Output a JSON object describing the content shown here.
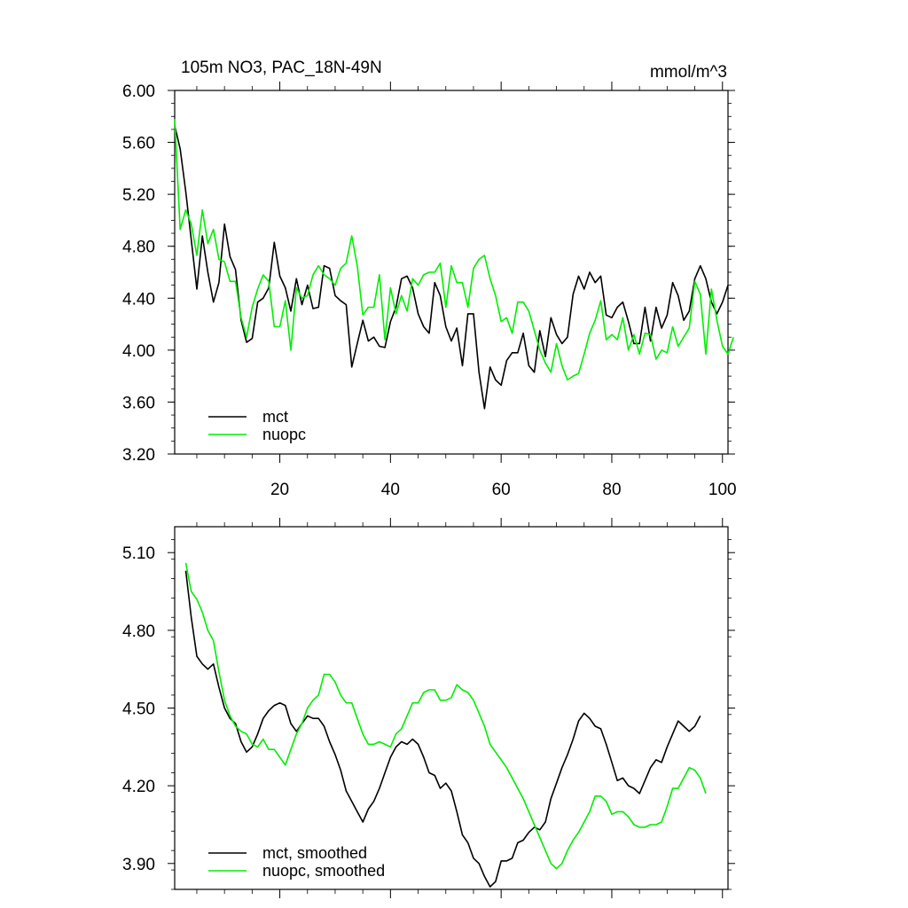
{
  "chart_data": [
    {
      "type": "line",
      "title_left": "105m NO3, PAC_18N-49N",
      "title_right": "mmol/m^3",
      "xlabel": "",
      "ylabel": "",
      "xlim": [
        1,
        101
      ],
      "ylim": [
        3.2,
        6.0
      ],
      "yticks": [
        "6.00",
        "5.60",
        "5.20",
        "4.80",
        "4.40",
        "4.00",
        "3.60",
        "3.20"
      ],
      "ytick_values": [
        6.0,
        5.6,
        5.2,
        4.8,
        4.4,
        4.0,
        3.6,
        3.2
      ],
      "xticks": [
        "20",
        "40",
        "60",
        "80",
        "100"
      ],
      "xtick_values": [
        20,
        40,
        60,
        80,
        100
      ],
      "legend": "bottom-left",
      "series": [
        {
          "name": "mct",
          "color": "#000000",
          "x_start": 1,
          "values": [
            5.73,
            5.55,
            5.22,
            4.85,
            4.47,
            4.88,
            4.6,
            4.37,
            4.52,
            4.97,
            4.72,
            4.62,
            4.23,
            4.06,
            4.09,
            4.37,
            4.4,
            4.48,
            4.83,
            4.57,
            4.48,
            4.3,
            4.55,
            4.35,
            4.5,
            4.32,
            4.33,
            4.65,
            4.63,
            4.42,
            4.38,
            4.35,
            3.87,
            4.05,
            4.23,
            4.07,
            4.1,
            4.03,
            4.02,
            4.22,
            4.33,
            4.55,
            4.57,
            4.48,
            4.28,
            4.18,
            4.13,
            4.52,
            4.42,
            4.18,
            4.07,
            4.17,
            3.88,
            4.28,
            4.28,
            3.83,
            3.55,
            3.87,
            3.77,
            3.73,
            3.92,
            3.98,
            3.98,
            4.13,
            3.88,
            3.83,
            4.15,
            3.95,
            4.25,
            4.12,
            4.05,
            4.1,
            4.43,
            4.57,
            4.47,
            4.6,
            4.52,
            4.57,
            4.27,
            4.25,
            4.33,
            4.37,
            4.22,
            4.05,
            4.05,
            4.33,
            4.07,
            4.33,
            4.17,
            4.27,
            4.52,
            4.42,
            4.23,
            4.3,
            4.55,
            4.65,
            4.55,
            4.37,
            4.28,
            4.37,
            4.5
          ]
        },
        {
          "name": "nuopc",
          "color": "#00ee00",
          "x_start": 1,
          "values": [
            5.78,
            4.93,
            5.08,
            4.97,
            4.73,
            5.08,
            4.82,
            4.93,
            4.7,
            4.68,
            4.53,
            4.53,
            4.25,
            4.1,
            4.33,
            4.47,
            4.58,
            4.53,
            4.18,
            4.18,
            4.38,
            4.0,
            4.48,
            4.4,
            4.42,
            4.58,
            4.65,
            4.58,
            4.55,
            4.5,
            4.63,
            4.67,
            4.88,
            4.65,
            4.27,
            4.33,
            4.33,
            4.58,
            4.08,
            4.48,
            4.28,
            4.42,
            4.3,
            4.55,
            4.5,
            4.58,
            4.6,
            4.6,
            4.67,
            4.33,
            4.65,
            4.52,
            4.52,
            4.33,
            4.63,
            4.7,
            4.73,
            4.55,
            4.42,
            4.22,
            4.25,
            4.13,
            4.37,
            4.37,
            4.3,
            4.15,
            4.0,
            3.9,
            3.83,
            4.05,
            3.88,
            3.77,
            3.8,
            3.82,
            3.97,
            4.13,
            4.23,
            4.38,
            4.08,
            4.12,
            4.08,
            4.25,
            4.0,
            4.12,
            3.97,
            4.13,
            4.12,
            3.93,
            4.0,
            3.98,
            4.18,
            4.03,
            4.1,
            4.17,
            4.53,
            4.43,
            3.97,
            4.47,
            4.23,
            4.03,
            3.97,
            4.1
          ]
        }
      ]
    },
    {
      "type": "line",
      "title": "",
      "xlabel": "",
      "ylabel": "",
      "xlim": [
        1,
        101
      ],
      "ylim": [
        3.8,
        5.2
      ],
      "yticks": [
        "5.10",
        "4.80",
        "4.50",
        "4.20",
        "3.90"
      ],
      "ytick_values": [
        5.1,
        4.8,
        4.5,
        4.2,
        3.9
      ],
      "legend": "bottom-left",
      "series": [
        {
          "name": "mct, smoothed",
          "color": "#000000",
          "x_start": 3,
          "values": [
            5.03,
            4.85,
            4.7,
            4.67,
            4.65,
            4.67,
            4.58,
            4.5,
            4.46,
            4.44,
            4.37,
            4.33,
            4.35,
            4.4,
            4.46,
            4.49,
            4.51,
            4.52,
            4.51,
            4.44,
            4.41,
            4.44,
            4.47,
            4.46,
            4.46,
            4.43,
            4.37,
            4.32,
            4.26,
            4.18,
            4.14,
            4.1,
            4.06,
            4.11,
            4.14,
            4.19,
            4.25,
            4.31,
            4.35,
            4.37,
            4.36,
            4.38,
            4.36,
            4.31,
            4.25,
            4.24,
            4.19,
            4.21,
            4.18,
            4.1,
            4.01,
            3.98,
            3.92,
            3.9,
            3.85,
            3.81,
            3.83,
            3.91,
            3.91,
            3.92,
            3.98,
            3.99,
            4.02,
            4.04,
            4.03,
            4.06,
            4.15,
            4.21,
            4.27,
            4.32,
            4.38,
            4.45,
            4.48,
            4.46,
            4.43,
            4.42,
            4.36,
            4.29,
            4.22,
            4.23,
            4.2,
            4.19,
            4.17,
            4.22,
            4.27,
            4.3,
            4.29,
            4.35,
            4.4,
            4.45,
            4.43,
            4.41,
            4.43,
            4.47
          ]
        },
        {
          "name": "nuopc, smoothed",
          "color": "#00ee00",
          "x_start": 3,
          "values": [
            5.06,
            4.95,
            4.92,
            4.87,
            4.8,
            4.76,
            4.64,
            4.53,
            4.47,
            4.43,
            4.41,
            4.4,
            4.36,
            4.35,
            4.38,
            4.34,
            4.34,
            4.31,
            4.28,
            4.34,
            4.4,
            4.44,
            4.5,
            4.53,
            4.55,
            4.63,
            4.63,
            4.6,
            4.55,
            4.52,
            4.52,
            4.46,
            4.4,
            4.36,
            4.36,
            4.37,
            4.36,
            4.35,
            4.4,
            4.42,
            4.47,
            4.52,
            4.52,
            4.56,
            4.57,
            4.57,
            4.53,
            4.53,
            4.54,
            4.59,
            4.57,
            4.56,
            4.53,
            4.48,
            4.43,
            4.36,
            4.33,
            4.3,
            4.27,
            4.23,
            4.19,
            4.15,
            4.1,
            4.05,
            4.0,
            3.95,
            3.9,
            3.88,
            3.9,
            3.95,
            3.99,
            4.02,
            4.06,
            4.1,
            4.16,
            4.16,
            4.14,
            4.09,
            4.1,
            4.1,
            4.08,
            4.05,
            4.04,
            4.04,
            4.05,
            4.05,
            4.06,
            4.12,
            4.19,
            4.19,
            4.23,
            4.27,
            4.26,
            4.23,
            4.17
          ]
        }
      ]
    }
  ]
}
